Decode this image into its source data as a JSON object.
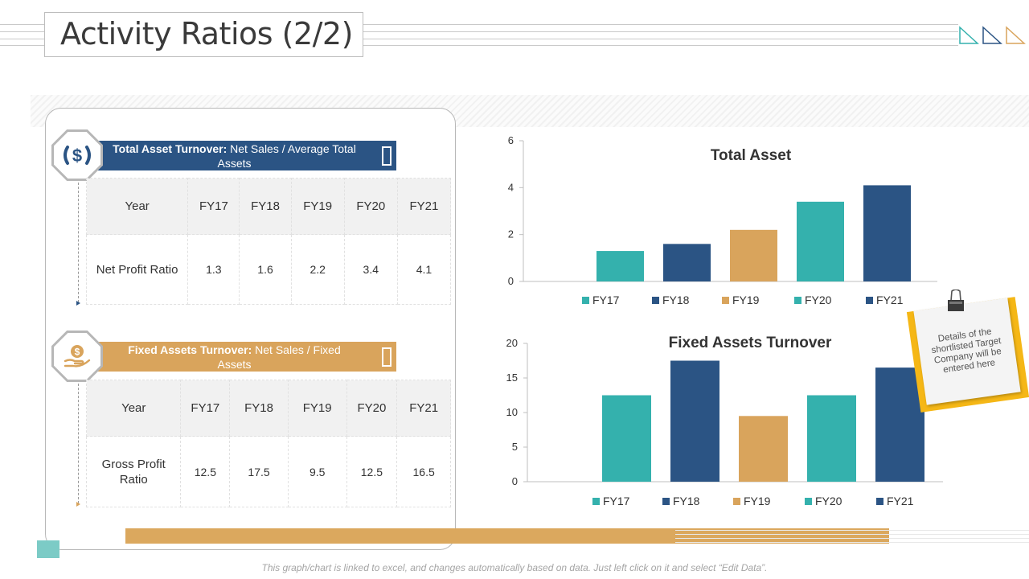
{
  "title": "Activity Ratios (2/2)",
  "colors": {
    "teal": "#34b1ad",
    "navy": "#2b5484",
    "gold": "#d9a45c",
    "gold_band": "#dba85e"
  },
  "section1": {
    "icon": "dollar-icon",
    "banner_bold": "Total Asset Turnover:",
    "banner_rest": " Net Sales / Average Total Assets",
    "table": {
      "header": [
        "Year",
        "FY17",
        "FY18",
        "FY19",
        "FY20",
        "FY21"
      ],
      "row": [
        "Net Profit Ratio",
        "1.3",
        "1.6",
        "2.2",
        "3.4",
        "4.1"
      ]
    }
  },
  "section2": {
    "icon": "hand-coin-icon",
    "banner_bold": "Fixed Assets Turnover:",
    "banner_rest": " Net Sales / Fixed Assets",
    "table": {
      "header": [
        "Year",
        "FY17",
        "FY18",
        "FY19",
        "FY20",
        "FY21"
      ],
      "row": [
        "Gross Profit Ratio",
        "12.5",
        "17.5",
        "9.5",
        "12.5",
        "16.5"
      ]
    }
  },
  "note": "Details of the shortlisted Target Company will be entered here",
  "footer": "This graph/chart is linked to excel, and changes automatically based on data. Just left click on it and select “Edit Data”.",
  "chart_data": [
    {
      "type": "bar",
      "title": "Total Asset",
      "categories": [
        "FY17",
        "FY18",
        "FY19",
        "FY20",
        "FY21"
      ],
      "values": [
        1.3,
        1.6,
        2.2,
        3.4,
        4.1
      ],
      "colors": [
        "#34b1ad",
        "#2b5484",
        "#d9a45c",
        "#34b1ad",
        "#2b5484"
      ],
      "yticks": [
        0,
        2,
        4,
        6
      ],
      "ylim": [
        0,
        6
      ],
      "legend": "bottom",
      "grid": false
    },
    {
      "type": "bar",
      "title": "Fixed Assets Turnover",
      "categories": [
        "FY17",
        "FY18",
        "FY19",
        "FY20",
        "FY21"
      ],
      "values": [
        12.5,
        17.5,
        9.5,
        12.5,
        16.5
      ],
      "colors": [
        "#34b1ad",
        "#2b5484",
        "#d9a45c",
        "#34b1ad",
        "#2b5484"
      ],
      "yticks": [
        0,
        5,
        10,
        15,
        20
      ],
      "ylim": [
        0,
        20
      ],
      "legend": "bottom",
      "grid": false
    }
  ]
}
